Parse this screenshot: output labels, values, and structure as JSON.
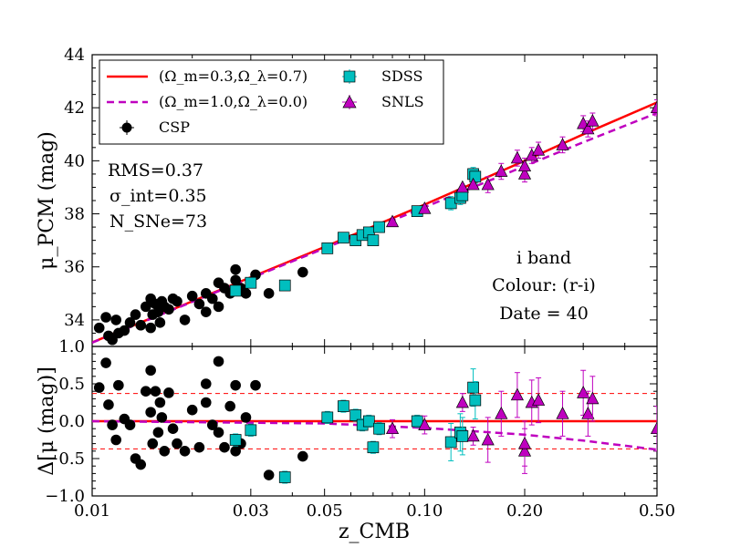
{
  "chart_data": [
    {
      "panel": "top",
      "type": "scatter",
      "xscale": "log",
      "xlim": [
        0.01,
        0.5
      ],
      "ylim": [
        33,
        44
      ],
      "ylabel": "μ_PCM (mag)",
      "yticks": [
        34,
        36,
        38,
        40,
        42,
        44
      ],
      "annotations": {
        "rms": "RMS=0.37",
        "sigma": "σ_int=0.35",
        "nsne": "N_SNe=73",
        "band": "i band",
        "colour": "Colour: (r-i)",
        "date": "Date = 40"
      },
      "legend": {
        "placement": "top-left",
        "entries": [
          {
            "label": "(Ω_m=0.3,Ω_λ=0.7)",
            "style": "solid-line",
            "color": "#ff0000"
          },
          {
            "label": "(Ω_m=1.0,Ω_λ=0.0)",
            "style": "dashed-line",
            "color": "#bf00bf"
          },
          {
            "label": "CSP",
            "style": "circle",
            "color": "#000000"
          },
          {
            "label": "SDSS",
            "style": "square",
            "color": "#00bfbf"
          },
          {
            "label": "SNLS",
            "style": "triangle",
            "color": "#bf00bf"
          }
        ]
      },
      "models": [
        {
          "name": "(Ω_m=0.3,Ω_λ=0.7)",
          "x": [
            0.01,
            0.02,
            0.05,
            0.1,
            0.2,
            0.3,
            0.5
          ],
          "y": [
            33.15,
            34.7,
            36.75,
            38.35,
            40.0,
            41.0,
            42.2
          ]
        },
        {
          "name": "(Ω_m=1.0,Ω_λ=0.0)",
          "x": [
            0.01,
            0.02,
            0.05,
            0.1,
            0.2,
            0.3,
            0.5
          ],
          "y": [
            33.14,
            34.68,
            36.7,
            38.25,
            39.8,
            40.7,
            41.8
          ]
        }
      ],
      "series": [
        {
          "name": "CSP",
          "x": [
            0.0105,
            0.011,
            0.0112,
            0.0115,
            0.0118,
            0.012,
            0.0125,
            0.013,
            0.0135,
            0.014,
            0.0145,
            0.015,
            0.015,
            0.0152,
            0.0155,
            0.0158,
            0.016,
            0.0162,
            0.0165,
            0.017,
            0.0175,
            0.018,
            0.019,
            0.02,
            0.021,
            0.022,
            0.022,
            0.023,
            0.024,
            0.024,
            0.025,
            0.026,
            0.027,
            0.027,
            0.028,
            0.029,
            0.031,
            0.034,
            0.043
          ],
          "y": [
            33.7,
            34.1,
            33.4,
            33.25,
            34.0,
            33.5,
            33.6,
            33.9,
            34.2,
            33.8,
            34.5,
            34.8,
            33.7,
            34.2,
            34.6,
            34.3,
            33.9,
            34.7,
            34.5,
            34.4,
            34.8,
            34.7,
            34.0,
            34.9,
            34.6,
            34.3,
            35.0,
            34.8,
            35.4,
            34.5,
            35.2,
            35.0,
            35.5,
            35.9,
            35.2,
            35.0,
            35.7,
            35.0,
            35.8
          ]
        },
        {
          "name": "SDSS",
          "x": [
            0.027,
            0.03,
            0.038,
            0.051,
            0.057,
            0.062,
            0.065,
            0.068,
            0.07,
            0.073,
            0.095,
            0.12,
            0.128,
            0.13,
            0.14,
            0.142
          ],
          "y": [
            35.1,
            35.4,
            35.3,
            36.7,
            37.1,
            37.0,
            37.2,
            37.3,
            37.0,
            37.5,
            38.1,
            38.4,
            38.6,
            38.7,
            39.5,
            39.4
          ]
        },
        {
          "name": "SNLS",
          "x": [
            0.08,
            0.1,
            0.13,
            0.14,
            0.155,
            0.17,
            0.19,
            0.2,
            0.2,
            0.21,
            0.22,
            0.26,
            0.3,
            0.31,
            0.32,
            0.5
          ],
          "y": [
            37.7,
            38.2,
            39.0,
            39.1,
            39.1,
            39.6,
            40.1,
            39.5,
            39.8,
            40.2,
            40.4,
            40.6,
            41.4,
            41.2,
            41.5,
            42.0
          ]
        }
      ]
    },
    {
      "panel": "bottom",
      "type": "scatter",
      "xscale": "log",
      "xlim": [
        0.01,
        0.5
      ],
      "ylim": [
        -1.0,
        1.0
      ],
      "xlabel": "z_CMB",
      "ylabel": "Δ[μ (mag)]",
      "xticks": [
        0.01,
        0.03,
        0.05,
        0.1,
        0.2,
        0.5
      ],
      "xtick_labels": [
        "0.01",
        "0.03",
        "0.05",
        "0.10",
        "0.20",
        "0.50"
      ],
      "yticks": [
        -1.0,
        -0.5,
        0.0,
        0.5,
        1.0
      ],
      "ytick_labels": [
        "−1.0",
        "−0.5",
        "0.0",
        "0.5",
        "1.0"
      ],
      "rms_band": 0.37,
      "zero_line": {
        "color": "#ff0000",
        "value": 0.0
      },
      "eds_residual": {
        "x": [
          0.01,
          0.05,
          0.1,
          0.2,
          0.3,
          0.5
        ],
        "y": [
          0.0,
          -0.03,
          -0.09,
          -0.18,
          -0.26,
          -0.38
        ]
      },
      "series": [
        {
          "name": "CSP",
          "x": [
            0.0105,
            0.011,
            0.0112,
            0.0115,
            0.0118,
            0.012,
            0.0125,
            0.013,
            0.0135,
            0.014,
            0.0145,
            0.015,
            0.015,
            0.0152,
            0.0155,
            0.0158,
            0.016,
            0.0162,
            0.0165,
            0.017,
            0.0175,
            0.018,
            0.019,
            0.02,
            0.021,
            0.022,
            0.022,
            0.023,
            0.024,
            0.024,
            0.025,
            0.026,
            0.027,
            0.027,
            0.028,
            0.029,
            0.031,
            0.034,
            0.043
          ],
          "y": [
            0.45,
            0.78,
            0.22,
            -0.05,
            -0.25,
            0.48,
            0.03,
            -0.05,
            -0.5,
            -0.58,
            0.4,
            0.68,
            0.12,
            -0.3,
            0.4,
            -0.15,
            0.25,
            0.05,
            -0.4,
            0.38,
            -0.1,
            -0.3,
            -0.4,
            0.15,
            -0.35,
            0.25,
            0.5,
            -0.05,
            0.8,
            -0.15,
            -0.35,
            0.2,
            0.48,
            -0.4,
            -0.3,
            0.05,
            0.48,
            -0.72,
            -0.47
          ]
        },
        {
          "name": "SDSS",
          "x": [
            0.027,
            0.03,
            0.038,
            0.051,
            0.057,
            0.062,
            0.065,
            0.068,
            0.07,
            0.073,
            0.095,
            0.12,
            0.128,
            0.13,
            0.14,
            0.142
          ],
          "y": [
            -0.25,
            -0.12,
            -0.75,
            0.05,
            0.2,
            0.08,
            -0.05,
            0.0,
            -0.35,
            -0.1,
            0.0,
            -0.28,
            -0.15,
            -0.2,
            0.45,
            0.28
          ]
        },
        {
          "name": "SNLS",
          "x": [
            0.08,
            0.1,
            0.13,
            0.14,
            0.155,
            0.17,
            0.19,
            0.2,
            0.2,
            0.21,
            0.22,
            0.26,
            0.3,
            0.31,
            0.32,
            0.5
          ],
          "y": [
            -0.1,
            -0.05,
            0.25,
            -0.2,
            -0.25,
            0.1,
            0.35,
            -0.4,
            -0.3,
            0.25,
            0.28,
            0.1,
            0.38,
            0.1,
            0.3,
            -0.1
          ]
        }
      ]
    }
  ]
}
